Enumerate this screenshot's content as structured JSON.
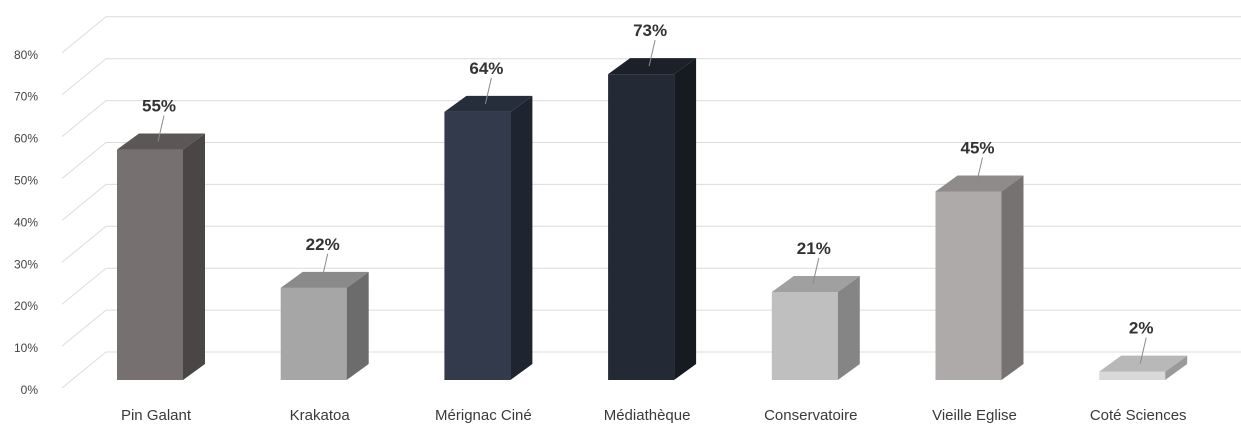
{
  "chart_data": {
    "type": "bar",
    "title": "",
    "xlabel": "",
    "ylabel": "",
    "ylim": [
      0,
      80
    ],
    "yticks": [
      "0%",
      "10%",
      "20%",
      "30%",
      "40%",
      "50%",
      "60%",
      "70%",
      "80%"
    ],
    "grid": true,
    "categories": [
      "Pin Galant",
      "Krakatoa",
      "Mérignac Ciné",
      "Médiathèque",
      "Conservatoire",
      "Vieille Eglise",
      "Coté Sciences"
    ],
    "values": [
      55,
      22,
      64,
      73,
      21,
      45,
      2
    ],
    "data_labels": [
      "55%",
      "22%",
      "64%",
      "73%",
      "21%",
      "45%",
      "2%"
    ],
    "colors": [
      {
        "front": "#767170",
        "side": "#4a4645",
        "top": "#5b5756"
      },
      {
        "front": "#a6a6a6",
        "side": "#6c6c6c",
        "top": "#8a8a8a"
      },
      {
        "front": "#323a4b",
        "side": "#1f2530",
        "top": "#262d3b"
      },
      {
        "front": "#232a35",
        "side": "#161b22",
        "top": "#1b2029"
      },
      {
        "front": "#bfbfbf",
        "side": "#858585",
        "top": "#a0a0a0"
      },
      {
        "front": "#aeaaaa",
        "side": "#767272",
        "top": "#8f8b8b"
      },
      {
        "front": "#d9d9d9",
        "side": "#9a9a9a",
        "top": "#b8b8b8"
      }
    ]
  }
}
